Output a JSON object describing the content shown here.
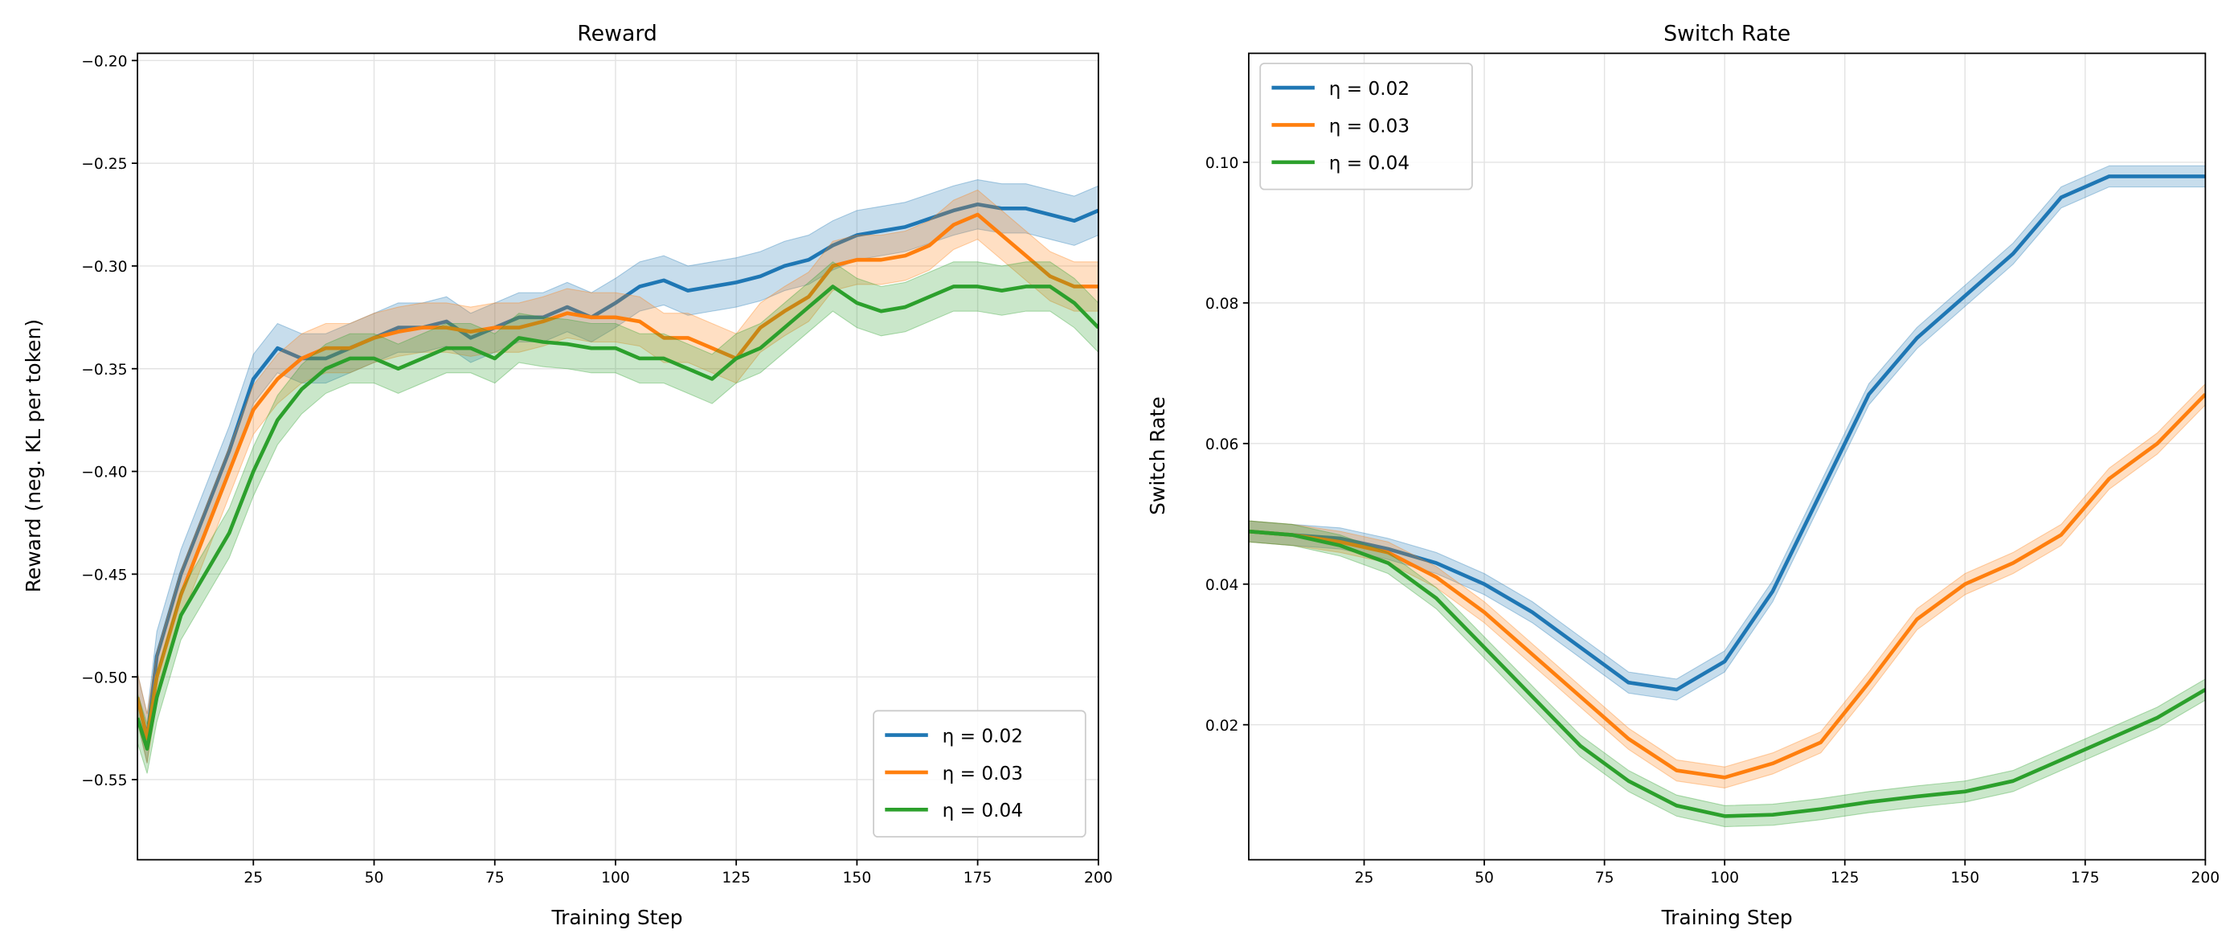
{
  "chart_data": [
    {
      "type": "line",
      "title": "Reward",
      "xlabel": "Training Step",
      "ylabel": "Reward (neg. KL per token)",
      "xlim": [
        1,
        200
      ],
      "ylim": [
        -0.589,
        -0.1965
      ],
      "xticks": [
        25,
        50,
        75,
        100,
        125,
        150,
        175,
        200
      ],
      "yticks": [
        -0.55,
        -0.5,
        -0.45,
        -0.4,
        -0.35,
        -0.3,
        -0.25,
        -0.2
      ],
      "ytick_labels": [
        "−0.55",
        "−0.50",
        "−0.45",
        "−0.40",
        "−0.35",
        "−0.30",
        "−0.25",
        "−0.20"
      ],
      "grid": true,
      "legend_position": "lower-right",
      "band_halfwidth": 0.012,
      "x": [
        1,
        3,
        5,
        10,
        15,
        20,
        25,
        30,
        35,
        40,
        45,
        50,
        55,
        60,
        65,
        70,
        75,
        80,
        85,
        90,
        95,
        100,
        105,
        110,
        115,
        120,
        125,
        130,
        135,
        140,
        145,
        150,
        155,
        160,
        165,
        170,
        175,
        180,
        185,
        190,
        195,
        200
      ],
      "series": [
        {
          "name": "η = 0.02",
          "color": "#1f77b4",
          "values": [
            -0.51,
            -0.53,
            -0.49,
            -0.45,
            -0.42,
            -0.39,
            -0.355,
            -0.34,
            -0.345,
            -0.345,
            -0.34,
            -0.335,
            -0.33,
            -0.33,
            -0.327,
            -0.335,
            -0.33,
            -0.325,
            -0.325,
            -0.32,
            -0.325,
            -0.318,
            -0.31,
            -0.307,
            -0.312,
            -0.31,
            -0.308,
            -0.305,
            -0.3,
            -0.297,
            -0.29,
            -0.285,
            -0.283,
            -0.281,
            -0.277,
            -0.273,
            -0.27,
            -0.272,
            -0.272,
            -0.275,
            -0.278,
            -0.273
          ]
        },
        {
          "name": "η = 0.03",
          "color": "#ff7f0e",
          "values": [
            -0.51,
            -0.53,
            -0.5,
            -0.46,
            -0.43,
            -0.4,
            -0.37,
            -0.355,
            -0.345,
            -0.34,
            -0.34,
            -0.335,
            -0.332,
            -0.33,
            -0.33,
            -0.332,
            -0.33,
            -0.33,
            -0.327,
            -0.323,
            -0.325,
            -0.325,
            -0.327,
            -0.335,
            -0.335,
            -0.34,
            -0.345,
            -0.33,
            -0.322,
            -0.315,
            -0.3,
            -0.297,
            -0.297,
            -0.295,
            -0.29,
            -0.28,
            -0.275,
            -0.285,
            -0.295,
            -0.305,
            -0.31,
            -0.31
          ]
        },
        {
          "name": "η = 0.04",
          "color": "#2ca02c",
          "values": [
            -0.52,
            -0.535,
            -0.51,
            -0.47,
            -0.45,
            -0.43,
            -0.4,
            -0.375,
            -0.36,
            -0.35,
            -0.345,
            -0.345,
            -0.35,
            -0.345,
            -0.34,
            -0.34,
            -0.345,
            -0.335,
            -0.337,
            -0.338,
            -0.34,
            -0.34,
            -0.345,
            -0.345,
            -0.35,
            -0.355,
            -0.345,
            -0.34,
            -0.33,
            -0.32,
            -0.31,
            -0.318,
            -0.322,
            -0.32,
            -0.315,
            -0.31,
            -0.31,
            -0.312,
            -0.31,
            -0.31,
            -0.318,
            -0.33
          ]
        }
      ]
    },
    {
      "type": "line",
      "title": "Switch Rate",
      "xlabel": "Training Step",
      "ylabel": "Switch Rate",
      "xlim": [
        1,
        200
      ],
      "ylim": [
        0.0008,
        0.1155
      ],
      "xticks": [
        25,
        50,
        75,
        100,
        125,
        150,
        175,
        200
      ],
      "yticks": [
        0.02,
        0.04,
        0.06,
        0.08,
        0.1
      ],
      "ytick_labels": [
        "0.02",
        "0.04",
        "0.06",
        "0.08",
        "0.10"
      ],
      "grid": true,
      "legend_position": "upper-left",
      "band_halfwidth": 0.0015,
      "x": [
        1,
        10,
        20,
        30,
        40,
        50,
        60,
        70,
        80,
        90,
        100,
        110,
        120,
        130,
        140,
        150,
        160,
        170,
        180,
        190,
        200
      ],
      "series": [
        {
          "name": "η = 0.02",
          "color": "#1f77b4",
          "values": [
            0.0475,
            0.047,
            0.0465,
            0.045,
            0.043,
            0.04,
            0.036,
            0.031,
            0.026,
            0.025,
            0.029,
            0.039,
            0.053,
            0.067,
            0.075,
            0.081,
            0.087,
            0.095,
            0.098,
            0.098,
            0.098
          ]
        },
        {
          "name": "η = 0.03",
          "color": "#ff7f0e",
          "values": [
            0.0475,
            0.047,
            0.046,
            0.0445,
            0.041,
            0.036,
            0.03,
            0.024,
            0.018,
            0.0135,
            0.0125,
            0.0145,
            0.0175,
            0.026,
            0.035,
            0.04,
            0.043,
            0.047,
            0.055,
            0.06,
            0.067
          ]
        },
        {
          "name": "η = 0.04",
          "color": "#2ca02c",
          "values": [
            0.0475,
            0.047,
            0.0455,
            0.043,
            0.038,
            0.031,
            0.024,
            0.017,
            0.012,
            0.0085,
            0.007,
            0.0072,
            0.008,
            0.009,
            0.0098,
            0.0105,
            0.012,
            0.015,
            0.018,
            0.021,
            0.025
          ]
        }
      ]
    }
  ]
}
